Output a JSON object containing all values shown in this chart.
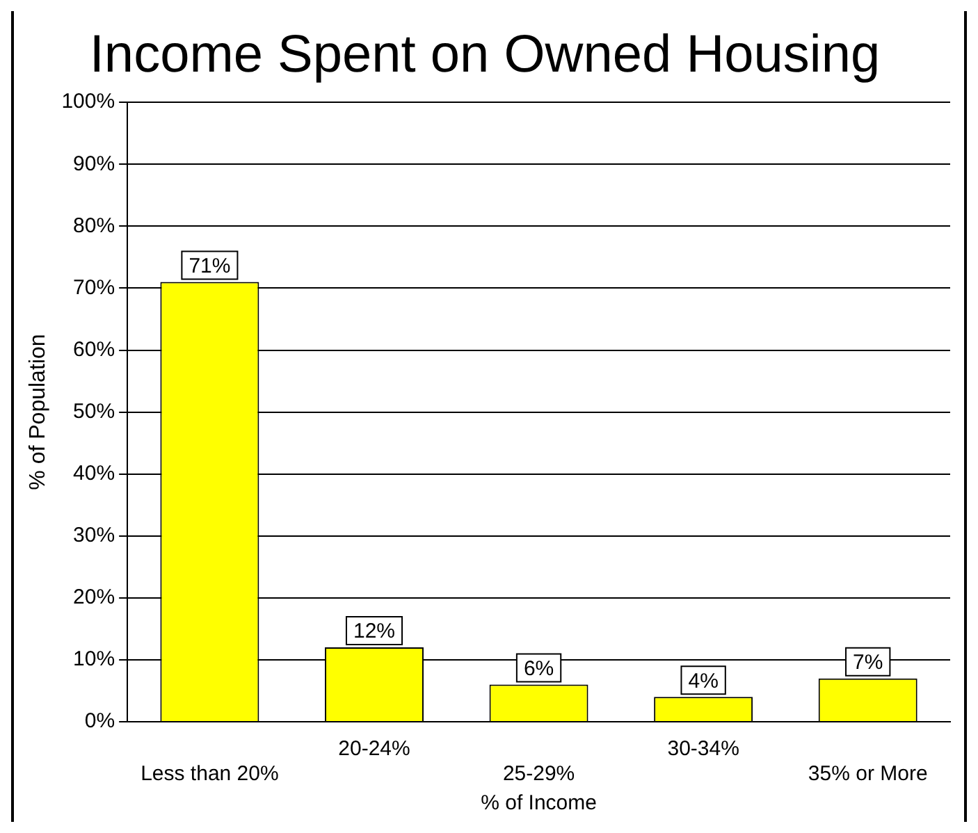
{
  "chart_data": {
    "type": "bar",
    "title": "Income Spent on Owned Housing",
    "xlabel": "% of Income",
    "ylabel": "% of Population",
    "categories": [
      "Less than 20%",
      "20-24%",
      "25-29%",
      "30-34%",
      "35% or More"
    ],
    "values": [
      71,
      12,
      6,
      4,
      7
    ],
    "value_labels": [
      "71%",
      "12%",
      "6%",
      "4%",
      "7%"
    ],
    "color": "#ffff00",
    "ylim": [
      0,
      100
    ],
    "yticks": [
      {
        "value": 0,
        "label": "0%"
      },
      {
        "value": 10,
        "label": "10%"
      },
      {
        "value": 20,
        "label": "20%"
      },
      {
        "value": 30,
        "label": "30%"
      },
      {
        "value": 40,
        "label": "40%"
      },
      {
        "value": 50,
        "label": "50%"
      },
      {
        "value": 60,
        "label": "60%"
      },
      {
        "value": 70,
        "label": "70%"
      },
      {
        "value": 80,
        "label": "80%"
      },
      {
        "value": 90,
        "label": "90%"
      },
      {
        "value": 100,
        "label": "100%"
      }
    ],
    "grid": "y",
    "legend": false
  }
}
